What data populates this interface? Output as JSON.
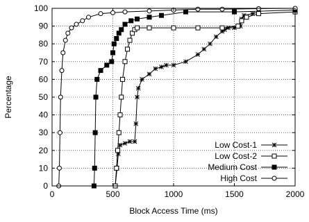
{
  "chart_data": {
    "type": "line",
    "xlabel": "Block Access Time (ms)",
    "ylabel": "Percentage",
    "xlim": [
      0,
      2000
    ],
    "ylim": [
      0,
      100
    ],
    "xticks": [
      0,
      500,
      1000,
      1500,
      2000
    ],
    "yticks": [
      0,
      10,
      20,
      30,
      40,
      50,
      60,
      70,
      80,
      90,
      100
    ],
    "grid": true,
    "legend_position": "bottom-right",
    "series": [
      {
        "name": "Low Cost-1",
        "marker": "star",
        "points": [
          [
            520,
            0
          ],
          [
            535,
            10
          ],
          [
            545,
            18
          ],
          [
            560,
            23
          ],
          [
            600,
            24
          ],
          [
            640,
            25
          ],
          [
            680,
            25
          ],
          [
            690,
            35
          ],
          [
            700,
            50
          ],
          [
            710,
            55
          ],
          [
            740,
            60
          ],
          [
            800,
            63
          ],
          [
            850,
            66
          ],
          [
            900,
            67
          ],
          [
            940,
            68
          ],
          [
            1000,
            68
          ],
          [
            1100,
            70
          ],
          [
            1200,
            74
          ],
          [
            1250,
            77
          ],
          [
            1300,
            80
          ],
          [
            1350,
            84
          ],
          [
            1400,
            87
          ],
          [
            1420,
            88
          ],
          [
            1450,
            89
          ],
          [
            1500,
            89
          ],
          [
            1550,
            90
          ],
          [
            1560,
            94
          ],
          [
            1580,
            96
          ],
          [
            1650,
            97
          ],
          [
            1700,
            98
          ]
        ]
      },
      {
        "name": "Low Cost-2",
        "marker": "square-open",
        "points": [
          [
            520,
            0
          ],
          [
            530,
            10
          ],
          [
            540,
            20
          ],
          [
            550,
            30
          ],
          [
            560,
            40
          ],
          [
            570,
            50
          ],
          [
            580,
            60
          ],
          [
            600,
            70
          ],
          [
            620,
            77
          ],
          [
            640,
            82
          ],
          [
            660,
            86
          ],
          [
            680,
            88
          ],
          [
            700,
            89
          ],
          [
            800,
            89
          ],
          [
            1000,
            89
          ],
          [
            1200,
            89
          ],
          [
            1400,
            89
          ],
          [
            1530,
            90
          ],
          [
            1560,
            93
          ],
          [
            1600,
            95
          ],
          [
            1700,
            97
          ],
          [
            2000,
            98
          ]
        ]
      },
      {
        "name": "Medium Cost",
        "marker": "square-filled",
        "points": [
          [
            345,
            0
          ],
          [
            350,
            10
          ],
          [
            355,
            30
          ],
          [
            360,
            50
          ],
          [
            370,
            60
          ],
          [
            400,
            65
          ],
          [
            450,
            68
          ],
          [
            490,
            70
          ],
          [
            500,
            75
          ],
          [
            510,
            80
          ],
          [
            530,
            83
          ],
          [
            550,
            86
          ],
          [
            570,
            88
          ],
          [
            600,
            91
          ],
          [
            650,
            93
          ],
          [
            700,
            94
          ],
          [
            800,
            95
          ],
          [
            900,
            96
          ],
          [
            1100,
            98
          ],
          [
            1500,
            98
          ],
          [
            2000,
            99
          ]
        ]
      },
      {
        "name": "High Cost",
        "marker": "circle-open",
        "points": [
          [
            55,
            0
          ],
          [
            60,
            10
          ],
          [
            65,
            30
          ],
          [
            70,
            50
          ],
          [
            80,
            65
          ],
          [
            90,
            75
          ],
          [
            110,
            82
          ],
          [
            130,
            86
          ],
          [
            160,
            89
          ],
          [
            200,
            91
          ],
          [
            250,
            93
          ],
          [
            300,
            95
          ],
          [
            400,
            97
          ],
          [
            500,
            97.5
          ],
          [
            600,
            98
          ],
          [
            800,
            98.5
          ],
          [
            1000,
            99
          ],
          [
            1200,
            99.5
          ],
          [
            1400,
            99.5
          ],
          [
            1700,
            99.8
          ],
          [
            2000,
            100
          ]
        ]
      }
    ]
  }
}
